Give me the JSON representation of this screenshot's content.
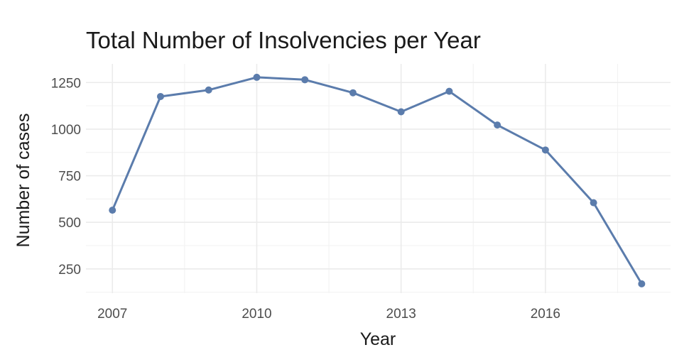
{
  "chart_data": {
    "type": "line",
    "title": "Total Number of Insolvencies per Year",
    "xlabel": "Year",
    "ylabel": "Number of cases",
    "x": [
      2007,
      2008,
      2009,
      2010,
      2011,
      2012,
      2013,
      2014,
      2015,
      2016,
      2017,
      2018
    ],
    "series": [
      {
        "values": [
          565,
          1175,
          1210,
          1278,
          1265,
          1195,
          1093,
          1203,
          1022,
          888,
          605,
          170
        ]
      }
    ],
    "xticks": [
      2007,
      2010,
      2013,
      2016
    ],
    "yticks": [
      250,
      500,
      750,
      1000,
      1250
    ],
    "xlim": [
      2006.45,
      2018.6
    ],
    "ylim": [
      120,
      1350
    ],
    "grid": true,
    "legend": "none",
    "line_color": "#5b7cac"
  }
}
